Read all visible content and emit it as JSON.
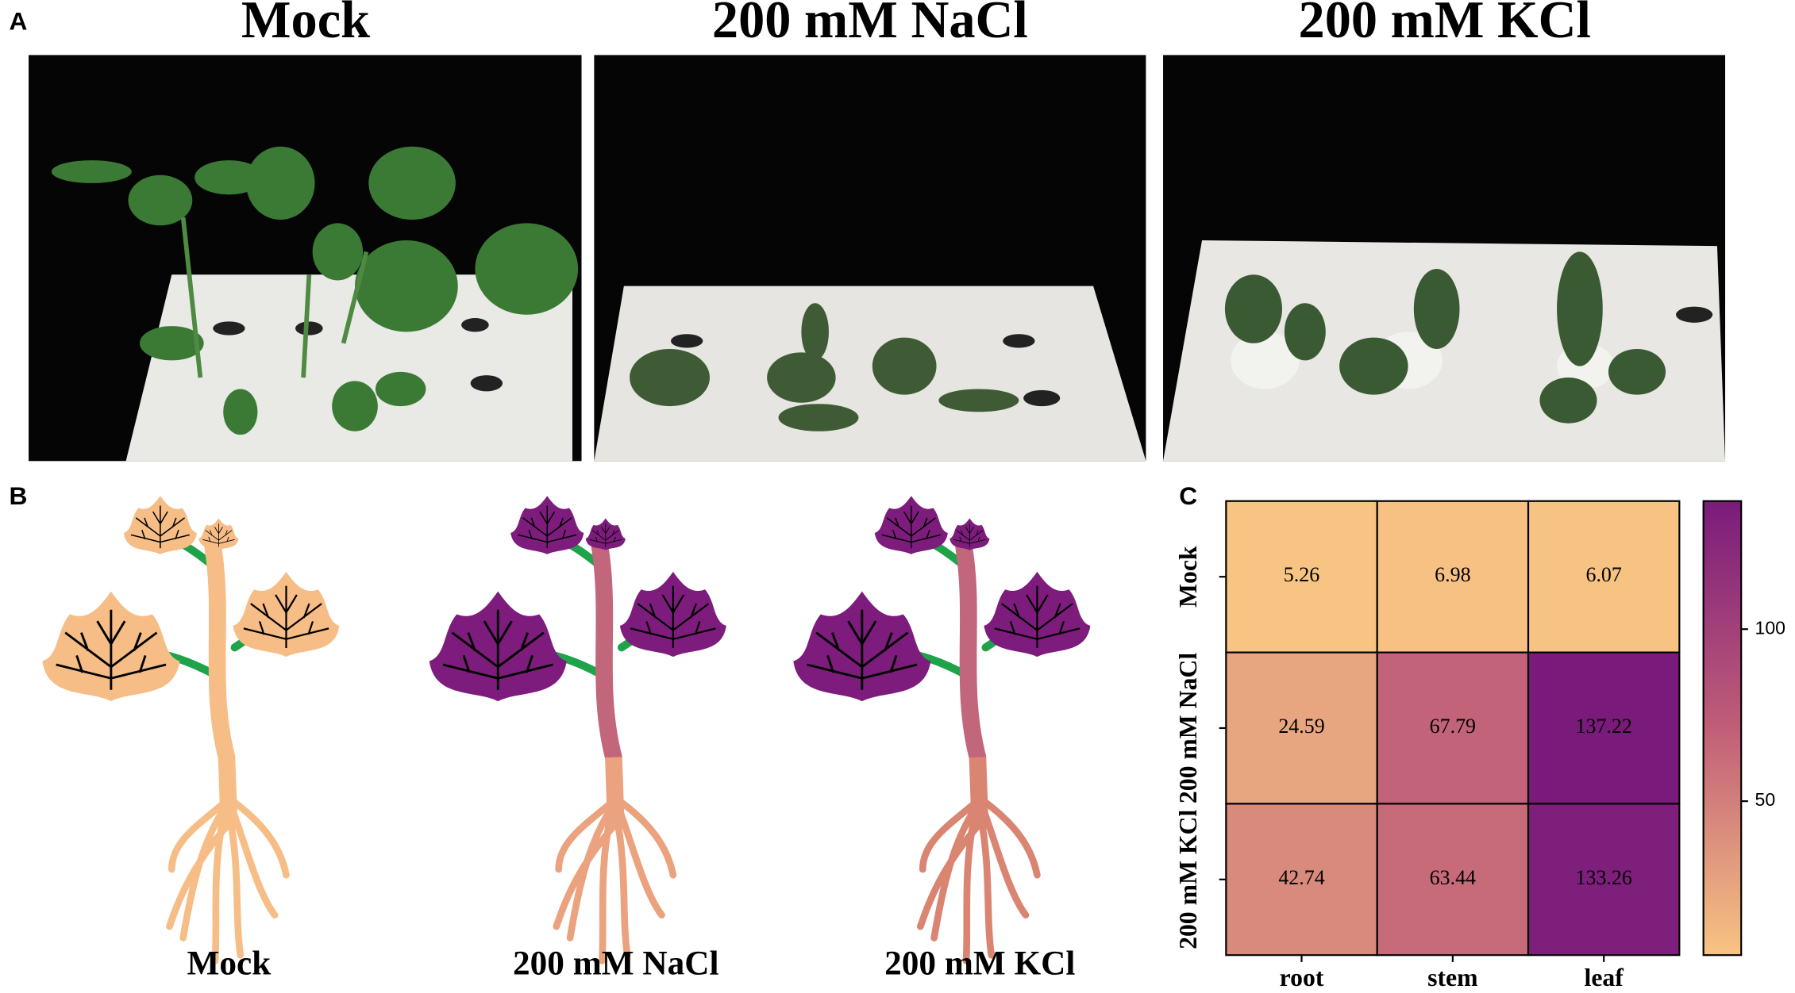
{
  "panel_labels": [
    "A",
    "B",
    "C"
  ],
  "panel_a": {
    "titles": [
      "Mock",
      "200 mM NaCl",
      "200 mM KCl"
    ]
  },
  "panel_b": {
    "labels": [
      "Mock",
      "200 mM NaCl",
      "200 mM KCl"
    ]
  },
  "chart_data": {
    "type": "heatmap",
    "rows": [
      "Mock",
      "200 mM NaCl",
      "200 mM KCl"
    ],
    "columns": [
      "root",
      "stem",
      "leaf"
    ],
    "values": [
      [
        5.26,
        6.98,
        6.07
      ],
      [
        24.59,
        67.79,
        137.22
      ],
      [
        42.74,
        63.44,
        133.26
      ]
    ],
    "zlim": [
      5.26,
      137.22
    ],
    "colorbar_ticks": [
      50,
      100
    ],
    "colors": [
      "#f8c483",
      "#c05e78",
      "#7a1b7b"
    ]
  }
}
